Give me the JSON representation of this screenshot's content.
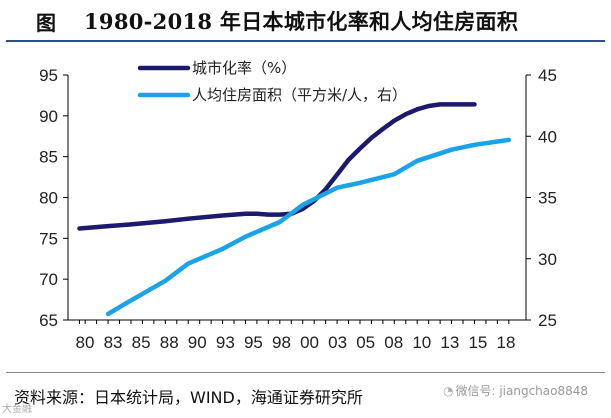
{
  "header": {
    "prefix": "图",
    "title": "1980-2018 年日本城市化率和人均住房面积"
  },
  "source": "资料来源：日本统计局，WIND，海通证券研究所",
  "watermark": {
    "icon": "wechat-icon",
    "text": "微信号: jiangchao8848"
  },
  "corner_mark": "大金融",
  "chart_data": {
    "type": "line",
    "title": "1980-2018 年日本城市化率和人均住房面积",
    "categories": [
      "80",
      "83",
      "85",
      "88",
      "90",
      "93",
      "95",
      "98",
      "00",
      "03",
      "05",
      "08",
      "10",
      "13",
      "15",
      "18"
    ],
    "x": [
      1980.5,
      1981,
      1982,
      1983,
      1984,
      1985,
      1986,
      1987,
      1988,
      1989,
      1990,
      1991,
      1992,
      1993,
      1994,
      1995,
      1996,
      1997,
      1998,
      1999,
      2000,
      2001,
      2002,
      2003,
      2004,
      2005,
      2006,
      2007,
      2008,
      2009,
      2010,
      2011,
      2012,
      2013,
      2014,
      2015,
      2016,
      2017,
      2018
    ],
    "xlim": [
      1979.5,
      2019.5
    ],
    "series": [
      {
        "name": "城市化率（%）",
        "axis": "left",
        "color": "#1c1a6e",
        "x": [
          1980.5,
          1983,
          1985,
          1988,
          1990,
          1993,
          1995,
          1996,
          1997,
          1998,
          1999,
          2000,
          2001,
          2002,
          2003,
          2004,
          2005,
          2006,
          2007,
          2008,
          2009,
          2010,
          2011,
          2012,
          2013,
          2014,
          2015
        ],
        "values": [
          76.2,
          76.5,
          76.7,
          77.1,
          77.4,
          77.8,
          78.0,
          78.0,
          77.9,
          77.9,
          78.0,
          78.6,
          79.6,
          81.0,
          82.8,
          84.6,
          86.0,
          87.3,
          88.4,
          89.4,
          90.2,
          90.8,
          91.2,
          91.4,
          91.4,
          91.4,
          91.4
        ]
      },
      {
        "name": "人均住房面积（平方米/人，右）",
        "axis": "right",
        "color": "#1aa3e8",
        "x": [
          1983,
          1985,
          1988,
          1990,
          1993,
          1995,
          1998,
          2000,
          2003,
          2005,
          2008,
          2010,
          2013,
          2015,
          2018
        ],
        "values": [
          25.5,
          26.6,
          28.2,
          29.6,
          30.8,
          31.8,
          33.0,
          34.4,
          35.8,
          36.2,
          36.9,
          38.0,
          38.9,
          39.3,
          39.7
        ]
      }
    ],
    "left_axis": {
      "ylim": [
        65,
        95
      ],
      "ticks": [
        "65",
        "70",
        "75",
        "80",
        "85",
        "90",
        "95"
      ]
    },
    "right_axis": {
      "ylim": [
        25,
        45
      ],
      "ticks": [
        "25",
        "30",
        "35",
        "40",
        "45"
      ]
    },
    "legend_position": "top-center",
    "grid": false
  }
}
